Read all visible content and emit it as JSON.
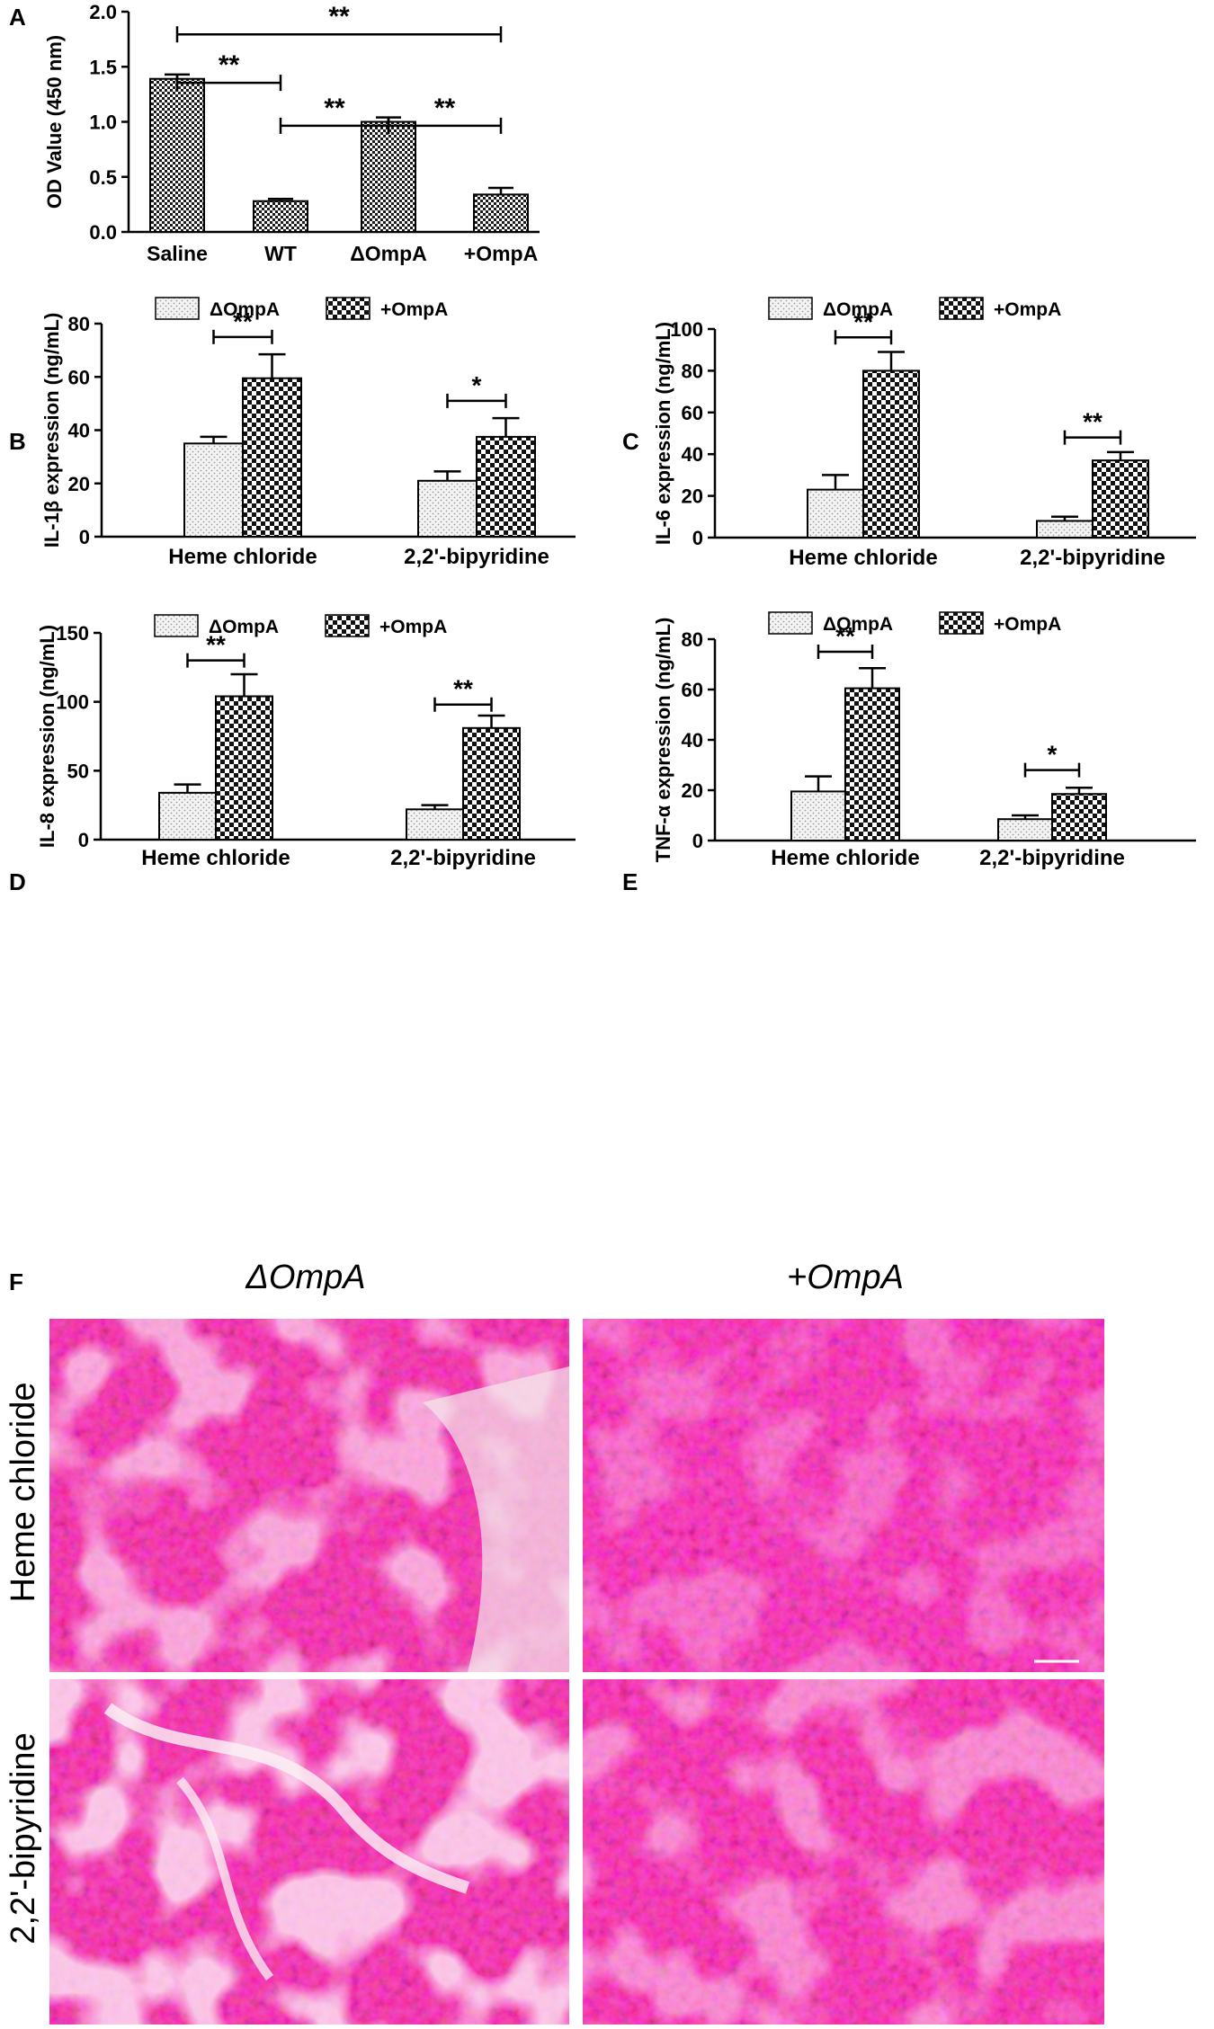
{
  "panel_letters": {
    "A": "A",
    "B": "B",
    "C": "C",
    "D": "D",
    "E": "E",
    "F": "F"
  },
  "colors": {
    "axis": "#000000",
    "bar_dotted": "#f2f2f2",
    "checker_dark": "#111111",
    "tissue_red": "#c8202a",
    "tissue_purple": "#6b2a7a"
  },
  "chart_data": [
    {
      "id": "A",
      "type": "bar",
      "title": "",
      "xlabel": "",
      "ylabel": "OD Value (450 nm)",
      "ylim": [
        0,
        2.0
      ],
      "yticks": [
        "0.0",
        "0.5",
        "1.0",
        "1.5",
        "2.0"
      ],
      "categories": [
        "Saline",
        "WT",
        "ΔOmpA",
        "+OmpA"
      ],
      "values": [
        1.39,
        0.28,
        1.0,
        0.34
      ],
      "errors": [
        0.04,
        0.02,
        0.04,
        0.06
      ],
      "significance": [
        {
          "from": 0,
          "to": 3,
          "label": "**",
          "level": 1.99
        },
        {
          "from": 0,
          "to": 1,
          "label": "**",
          "level": 1.55
        },
        {
          "from": 1,
          "to": 2,
          "label": "**",
          "level": 1.16
        },
        {
          "from": 2,
          "to": 3,
          "label": "**",
          "level": 1.16
        }
      ],
      "legend": []
    },
    {
      "id": "B",
      "type": "bar",
      "title": "",
      "xlabel": "",
      "ylabel": "IL-1β  expression (ng/mL)",
      "ylim": [
        0,
        80
      ],
      "yticks": [
        "0",
        "20",
        "40",
        "60",
        "80"
      ],
      "categories": [
        "Heme chloride",
        "2,2'-bipyridine"
      ],
      "series": [
        {
          "name": "ΔOmpA",
          "values": [
            35,
            21
          ],
          "errors": [
            2.5,
            3.5
          ]
        },
        {
          "name": "+OmpA",
          "values": [
            59.5,
            37.5
          ],
          "errors": [
            9,
            7
          ]
        }
      ],
      "significance": [
        {
          "group": 0,
          "label": "**",
          "level": 75
        },
        {
          "group": 1,
          "label": "*",
          "level": 51
        }
      ],
      "legend": [
        "ΔOmpA",
        "+OmpA"
      ]
    },
    {
      "id": "C",
      "type": "bar",
      "title": "",
      "xlabel": "",
      "ylabel": "IL-6 expression (ng/mL)",
      "ylim": [
        0,
        100
      ],
      "yticks": [
        "0",
        "20",
        "40",
        "60",
        "80",
        "100"
      ],
      "categories": [
        "Heme chloride",
        "2,2'-bipyridine"
      ],
      "series": [
        {
          "name": "ΔOmpA",
          "values": [
            23,
            8
          ],
          "errors": [
            7,
            2
          ]
        },
        {
          "name": "+OmpA",
          "values": [
            80,
            37
          ],
          "errors": [
            9,
            4
          ]
        }
      ],
      "significance": [
        {
          "group": 0,
          "label": "**",
          "level": 96
        },
        {
          "group": 1,
          "label": "**",
          "level": 48
        }
      ],
      "legend": [
        "ΔOmpA",
        "+OmpA"
      ]
    },
    {
      "id": "D",
      "type": "bar",
      "title": "",
      "xlabel": "",
      "ylabel": "IL-8 expression (ng/mL)",
      "ylim": [
        0,
        150
      ],
      "yticks": [
        "0",
        "50",
        "100",
        "150"
      ],
      "categories": [
        "Heme chloride",
        "2,2'-bipyridine"
      ],
      "series": [
        {
          "name": "ΔOmpA",
          "values": [
            34,
            22
          ],
          "errors": [
            6,
            3
          ]
        },
        {
          "name": "+OmpA",
          "values": [
            104,
            81
          ],
          "errors": [
            16,
            9
          ]
        }
      ],
      "significance": [
        {
          "group": 0,
          "label": "**",
          "level": 130
        },
        {
          "group": 1,
          "label": "**",
          "level": 98
        }
      ],
      "legend": [
        "ΔOmpA",
        "+OmpA"
      ]
    },
    {
      "id": "E",
      "type": "bar",
      "title": "",
      "xlabel": "",
      "ylabel": "TNF-α  expression (ng/mL)",
      "ylim": [
        0,
        80
      ],
      "yticks": [
        "0",
        "20",
        "40",
        "60",
        "80"
      ],
      "categories": [
        "Heme chloride",
        "2,2'-bipyridine"
      ],
      "series": [
        {
          "name": "ΔOmpA",
          "values": [
            19.5,
            8.5
          ],
          "errors": [
            6,
            1.5
          ]
        },
        {
          "name": "+OmpA",
          "values": [
            60.5,
            18.5
          ],
          "errors": [
            8,
            2.5
          ]
        }
      ],
      "significance": [
        {
          "group": 0,
          "label": "**",
          "level": 75
        },
        {
          "group": 1,
          "label": "*",
          "level": 28
        }
      ],
      "legend": [
        "ΔOmpA",
        "+OmpA"
      ]
    }
  ],
  "panel_F": {
    "column_headers": [
      "ΔOmpA",
      "+OmpA"
    ],
    "row_labels": [
      "Heme chloride",
      "2,2'-bipyridine"
    ]
  }
}
